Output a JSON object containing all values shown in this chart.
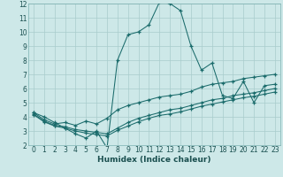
{
  "xlabel": "Humidex (Indice chaleur)",
  "bg_color": "#cde8e8",
  "grid_color": "#a8cccc",
  "line_color": "#1a6b6b",
  "xlim": [
    -0.5,
    23.5
  ],
  "ylim": [
    2,
    12
  ],
  "xticks": [
    0,
    1,
    2,
    3,
    4,
    5,
    6,
    7,
    8,
    9,
    10,
    11,
    12,
    13,
    14,
    15,
    16,
    17,
    18,
    19,
    20,
    21,
    22,
    23
  ],
  "yticks": [
    2,
    3,
    4,
    5,
    6,
    7,
    8,
    9,
    10,
    11,
    12
  ],
  "series": [
    {
      "x": [
        0,
        1,
        2,
        3,
        4,
        5,
        6,
        7,
        8,
        9,
        10,
        11,
        12,
        13,
        14,
        15,
        16,
        17,
        18,
        19,
        20,
        21,
        22,
        23
      ],
      "y": [
        4.3,
        4.0,
        3.6,
        3.2,
        2.8,
        2.5,
        3.0,
        1.8,
        8.0,
        9.8,
        10.0,
        10.5,
        12.1,
        12.0,
        11.5,
        9.0,
        7.3,
        7.8,
        5.5,
        5.3,
        6.5,
        5.0,
        6.2,
        6.3
      ]
    },
    {
      "x": [
        0,
        1,
        2,
        3,
        4,
        5,
        6,
        7,
        8,
        9,
        10,
        11,
        12,
        13,
        14,
        15,
        16,
        17,
        18,
        19,
        20,
        21,
        22,
        23
      ],
      "y": [
        4.3,
        3.8,
        3.5,
        3.6,
        3.4,
        3.7,
        3.5,
        3.9,
        4.5,
        4.8,
        5.0,
        5.2,
        5.4,
        5.5,
        5.6,
        5.8,
        6.1,
        6.3,
        6.4,
        6.5,
        6.7,
        6.8,
        6.9,
        7.0
      ]
    },
    {
      "x": [
        0,
        1,
        2,
        3,
        4,
        5,
        6,
        7,
        8,
        9,
        10,
        11,
        12,
        13,
        14,
        15,
        16,
        17,
        18,
        19,
        20,
        21,
        22,
        23
      ],
      "y": [
        4.2,
        3.7,
        3.4,
        3.3,
        3.1,
        3.0,
        2.9,
        2.8,
        3.2,
        3.6,
        3.9,
        4.1,
        4.3,
        4.5,
        4.6,
        4.8,
        5.0,
        5.2,
        5.3,
        5.5,
        5.6,
        5.7,
        5.85,
        6.0
      ]
    },
    {
      "x": [
        0,
        1,
        2,
        3,
        4,
        5,
        6,
        7,
        8,
        9,
        10,
        11,
        12,
        13,
        14,
        15,
        16,
        17,
        18,
        19,
        20,
        21,
        22,
        23
      ],
      "y": [
        4.15,
        3.65,
        3.35,
        3.2,
        3.0,
        2.85,
        2.75,
        2.65,
        3.05,
        3.35,
        3.65,
        3.9,
        4.1,
        4.2,
        4.35,
        4.55,
        4.75,
        4.9,
        5.05,
        5.2,
        5.35,
        5.45,
        5.6,
        5.75
      ]
    }
  ]
}
